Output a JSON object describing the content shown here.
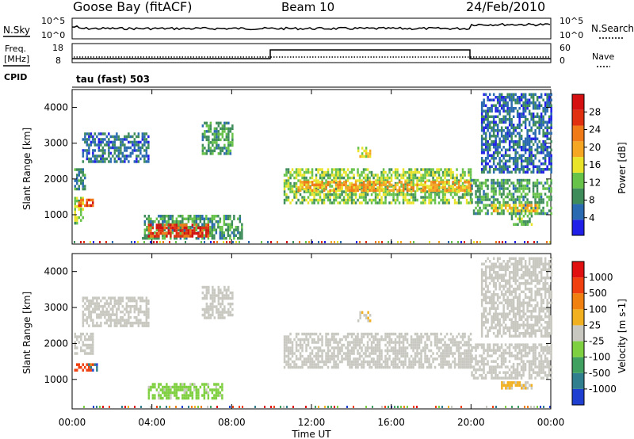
{
  "header": {
    "station": "Goose Bay (fitACF)",
    "beam": "Beam 10",
    "date": "24/Feb/2010"
  },
  "noise_panel": {
    "left_label": "N.Sky",
    "right_label": "N.Search",
    "left_ticks": [
      "10^5",
      "10^0"
    ],
    "right_ticks": [
      "10^5",
      "10^0"
    ]
  },
  "freq_panel": {
    "left_label_line1": "Freq.",
    "left_label_line2": "[MHz]",
    "right_label": "Nave",
    "left_ticks": [
      "18",
      "8"
    ],
    "right_ticks": [
      "60",
      "0"
    ]
  },
  "cpid": {
    "label": "CPID",
    "value": "tau (fast) 503"
  },
  "x_axis": {
    "title": "Time UT",
    "ticks": [
      "00:00",
      "04:00",
      "08:00",
      "12:00",
      "16:00",
      "20:00",
      "00:00"
    ]
  },
  "power_colorbar": {
    "label": "Power [dB]",
    "ticks": [
      "28",
      "24",
      "20",
      "16",
      "12",
      "8",
      "4"
    ],
    "colors": [
      "#1f1fe8",
      "#2a6ab0",
      "#3e8c5a",
      "#67c24a",
      "#e9e42a",
      "#f5a623",
      "#f07a18",
      "#e03010",
      "#d41010"
    ]
  },
  "velocity_colorbar": {
    "label": "Velocity [m s-1]",
    "ticks": [
      "1000",
      "500",
      "100",
      "25",
      "-25",
      "-100",
      "-500",
      "-1000"
    ],
    "colors": [
      "#1f3fd0",
      "#2f7f8f",
      "#3fa060",
      "#7fd040",
      "#c8c8c0",
      "#f0b020",
      "#f08010",
      "#f04010",
      "#e01010"
    ]
  },
  "chart_data": [
    {
      "type": "heatmap",
      "title": "",
      "xlabel": "Time UT",
      "ylabel": "Slant Range [km]",
      "xlim": [
        0,
        24
      ],
      "ylim": [
        180,
        4500
      ],
      "yticks": [
        1000,
        2000,
        3000,
        4000
      ],
      "colorbar": "Power [dB]",
      "clim": [
        0,
        32
      ],
      "regions": [
        {
          "t0": 0.1,
          "t1": 0.6,
          "r0": 1700,
          "r1": 2300,
          "v": 8
        },
        {
          "t0": 0.1,
          "t1": 0.5,
          "r0": 800,
          "r1": 1500,
          "v": 14
        },
        {
          "t0": 0.3,
          "t1": 1.0,
          "r0": 1250,
          "r1": 1450,
          "v": 26
        },
        {
          "t0": 0.5,
          "t1": 3.8,
          "r0": 2500,
          "r1": 3300,
          "v": 6
        },
        {
          "t0": 6.5,
          "t1": 8.0,
          "r0": 2700,
          "r1": 3600,
          "v": 10
        },
        {
          "t0": 3.5,
          "t1": 8.5,
          "r0": 350,
          "r1": 1000,
          "v": 10
        },
        {
          "t0": 3.8,
          "t1": 6.8,
          "r0": 400,
          "r1": 750,
          "v": 27
        },
        {
          "t0": 10.6,
          "t1": 20.0,
          "r0": 1300,
          "r1": 2300,
          "v": 13
        },
        {
          "t0": 11.3,
          "t1": 20.0,
          "r0": 1650,
          "r1": 1950,
          "v": 20
        },
        {
          "t0": 14.3,
          "t1": 14.9,
          "r0": 2650,
          "r1": 2900,
          "v": 16
        },
        {
          "t0": 20.0,
          "t1": 24.0,
          "r0": 1000,
          "r1": 2000,
          "v": 10
        },
        {
          "t0": 21.0,
          "t1": 23.3,
          "r0": 1100,
          "r1": 1300,
          "v": 18
        },
        {
          "t0": 22.0,
          "t1": 23.0,
          "r0": 750,
          "r1": 1000,
          "v": 12
        },
        {
          "t0": 20.5,
          "t1": 24.0,
          "r0": 2200,
          "r1": 4400,
          "v": 6
        }
      ]
    },
    {
      "type": "heatmap",
      "title": "",
      "xlabel": "Time UT",
      "ylabel": "Slant Range [km]",
      "xlim": [
        0,
        24
      ],
      "ylim": [
        180,
        4500
      ],
      "yticks": [
        1000,
        2000,
        3000,
        4000
      ],
      "colorbar": "Velocity [m s-1]",
      "clim": [
        -1000,
        1000
      ],
      "regions": [
        {
          "t0": 0.1,
          "t1": 1.0,
          "r0": 1700,
          "r1": 2300,
          "v": 0
        },
        {
          "t0": 0.1,
          "t1": 1.0,
          "r0": 1250,
          "r1": 1450,
          "v": 600
        },
        {
          "t0": 0.8,
          "t1": 1.2,
          "r0": 1250,
          "r1": 1450,
          "v": -800
        },
        {
          "t0": 0.5,
          "t1": 3.8,
          "r0": 2500,
          "r1": 3300,
          "v": 0
        },
        {
          "t0": 6.5,
          "t1": 8.0,
          "r0": 2700,
          "r1": 3600,
          "v": 0
        },
        {
          "t0": 3.8,
          "t1": 7.5,
          "r0": 450,
          "r1": 900,
          "v": -150
        },
        {
          "t0": 10.6,
          "t1": 20.0,
          "r0": 1300,
          "r1": 2300,
          "v": 0
        },
        {
          "t0": 14.3,
          "t1": 14.9,
          "r0": 2650,
          "r1": 2900,
          "v": 80
        },
        {
          "t0": 20.0,
          "t1": 24.0,
          "r0": 1000,
          "r1": 2000,
          "v": 0
        },
        {
          "t0": 21.5,
          "t1": 23.0,
          "r0": 750,
          "r1": 950,
          "v": 120
        },
        {
          "t0": 20.5,
          "t1": 24.0,
          "r0": 2200,
          "r1": 4400,
          "v": 0
        }
      ]
    }
  ]
}
